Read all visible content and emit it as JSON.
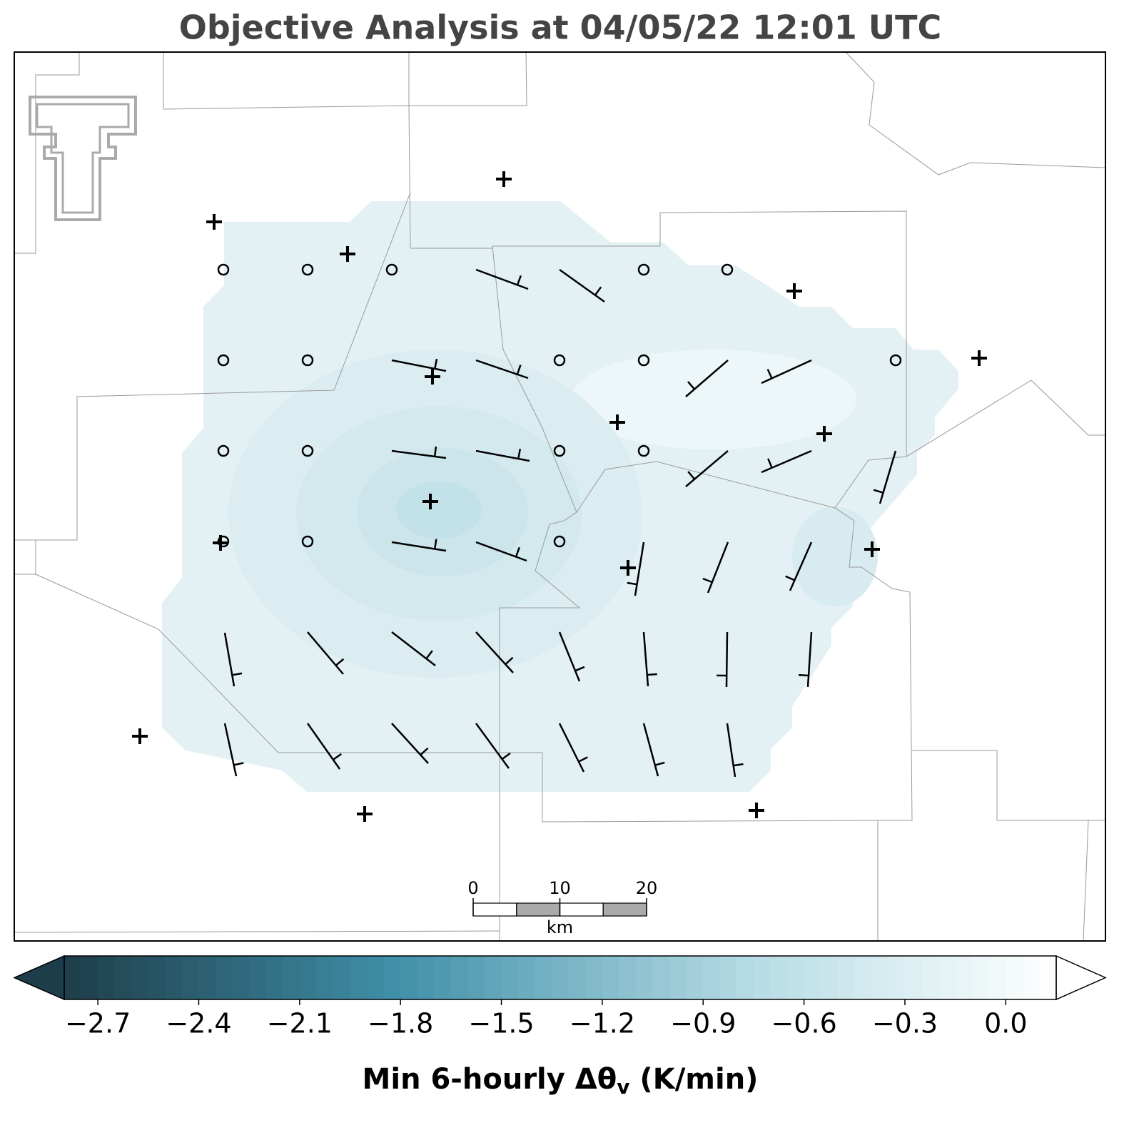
{
  "chart_data": {
    "type": "contourf",
    "title": "Objective Analysis at 04/05/22 12:01 UTC",
    "colorbar": {
      "xlim": [
        -2.8,
        0.15
      ],
      "xticks": [
        {
          "value": -2.7,
          "label": "−2.7"
        },
        {
          "value": -2.4,
          "label": "−2.4"
        },
        {
          "value": -2.1,
          "label": "−2.1"
        },
        {
          "value": -1.8,
          "label": "−1.8"
        },
        {
          "value": -1.5,
          "label": "−1.5"
        },
        {
          "value": -1.2,
          "label": "−1.2"
        },
        {
          "value": -0.9,
          "label": "−0.9"
        },
        {
          "value": -0.6,
          "label": "−0.6"
        },
        {
          "value": -0.3,
          "label": "−0.3"
        },
        {
          "value": 0.0,
          "label": "0.0"
        }
      ],
      "label": {
        "text": "Min 6-hourly Δθ",
        "subscript": "v",
        "suffix": " (K/min)"
      }
    },
    "scale_bar": {
      "xlim": [
        0,
        20
      ],
      "xticks": [
        0,
        10,
        20
      ],
      "unit": "km"
    }
  }
}
